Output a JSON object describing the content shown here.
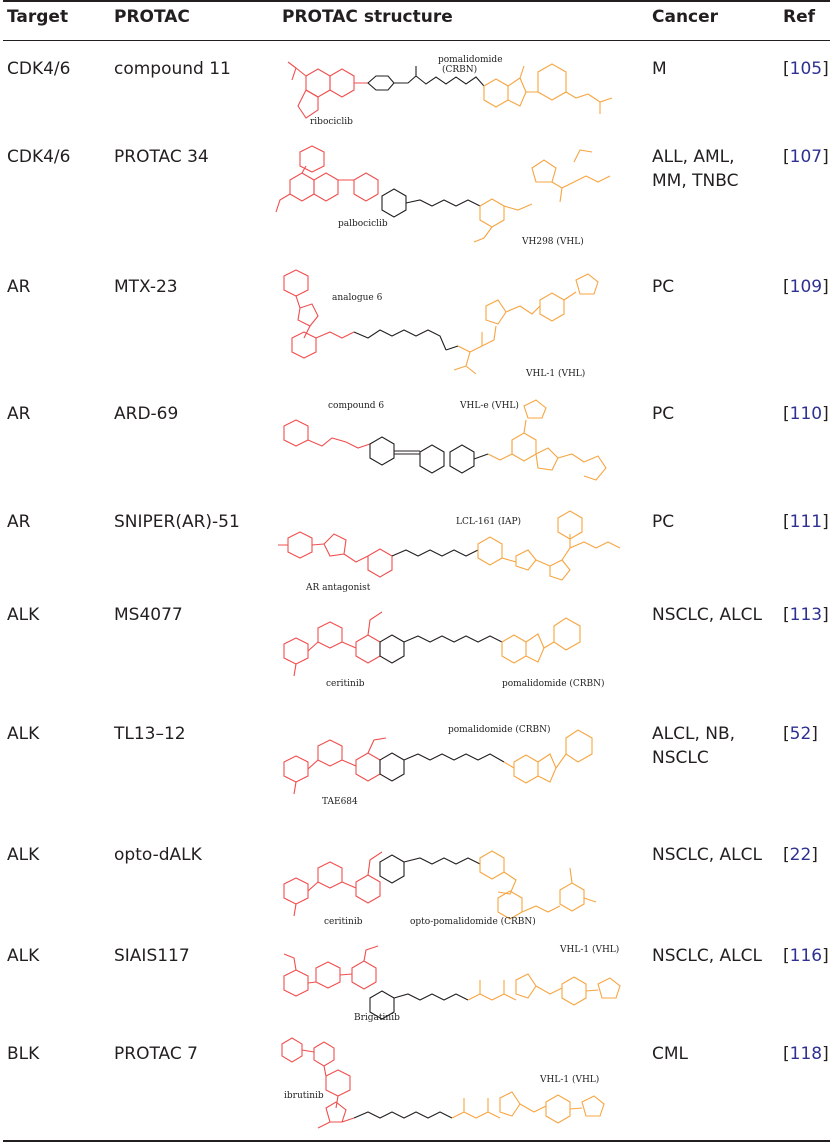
{
  "header": {
    "target": "Target",
    "protac": "PROTAC",
    "structure": "PROTAC structure",
    "cancer": "Cancer",
    "ref": "Ref"
  },
  "colors": {
    "warhead": "#f04e4e",
    "e3_ligand": "#f7a541",
    "linker": "#231f20",
    "ref_link": "#2e3192"
  },
  "rows": [
    {
      "target": "CDK4/6",
      "protac": "compound 11",
      "cancer": [
        "M"
      ],
      "ref": "105",
      "labels": [
        "pomalidomide",
        "(CRBN)",
        "ribociclib"
      ]
    },
    {
      "target": "CDK4/6",
      "protac": "PROTAC 34",
      "cancer": [
        "ALL, AML,",
        "MM, TNBC"
      ],
      "ref": "107",
      "labels": [
        "palbociclib",
        "VH298 (VHL)"
      ]
    },
    {
      "target": "AR",
      "protac": "MTX-23",
      "cancer": [
        "PC"
      ],
      "ref": "109",
      "labels": [
        "analogue 6",
        "VHL-1 (VHL)"
      ]
    },
    {
      "target": "AR",
      "protac": "ARD-69",
      "cancer": [
        "PC"
      ],
      "ref": "110",
      "labels": [
        "compound 6",
        "VHL-e (VHL)"
      ]
    },
    {
      "target": "AR",
      "protac": "SNIPER(AR)-51",
      "cancer": [
        "PC"
      ],
      "ref": "111",
      "labels": [
        "LCL-161 (IAP)",
        "AR antagonist"
      ]
    },
    {
      "target": "ALK",
      "protac": "MS4077",
      "cancer": [
        "NSCLC, ALCL"
      ],
      "ref": "113",
      "labels": [
        "ceritinib",
        "pomalidomide (CRBN)"
      ]
    },
    {
      "target": "ALK",
      "protac": "TL13–12",
      "cancer": [
        "ALCL, NB,",
        "NSCLC"
      ],
      "ref": "52",
      "labels": [
        "pomalidomide (CRBN)",
        "TAE684"
      ]
    },
    {
      "target": "ALK",
      "protac": "opto-dALK",
      "cancer": [
        "NSCLC, ALCL"
      ],
      "ref": "22",
      "labels": [
        "ceritinib",
        "opto-pomalidomide (CRBN)"
      ]
    },
    {
      "target": "ALK",
      "protac": "SIAIS117",
      "cancer": [
        "NSCLC, ALCL"
      ],
      "ref": "116",
      "labels": [
        "Brigatinib",
        "VHL-1 (VHL)"
      ]
    },
    {
      "target": "BLK",
      "protac": "PROTAC 7",
      "cancer": [
        "CML"
      ],
      "ref": "118",
      "labels": [
        "ibrutinib",
        "VHL-1 (VHL)"
      ]
    }
  ]
}
